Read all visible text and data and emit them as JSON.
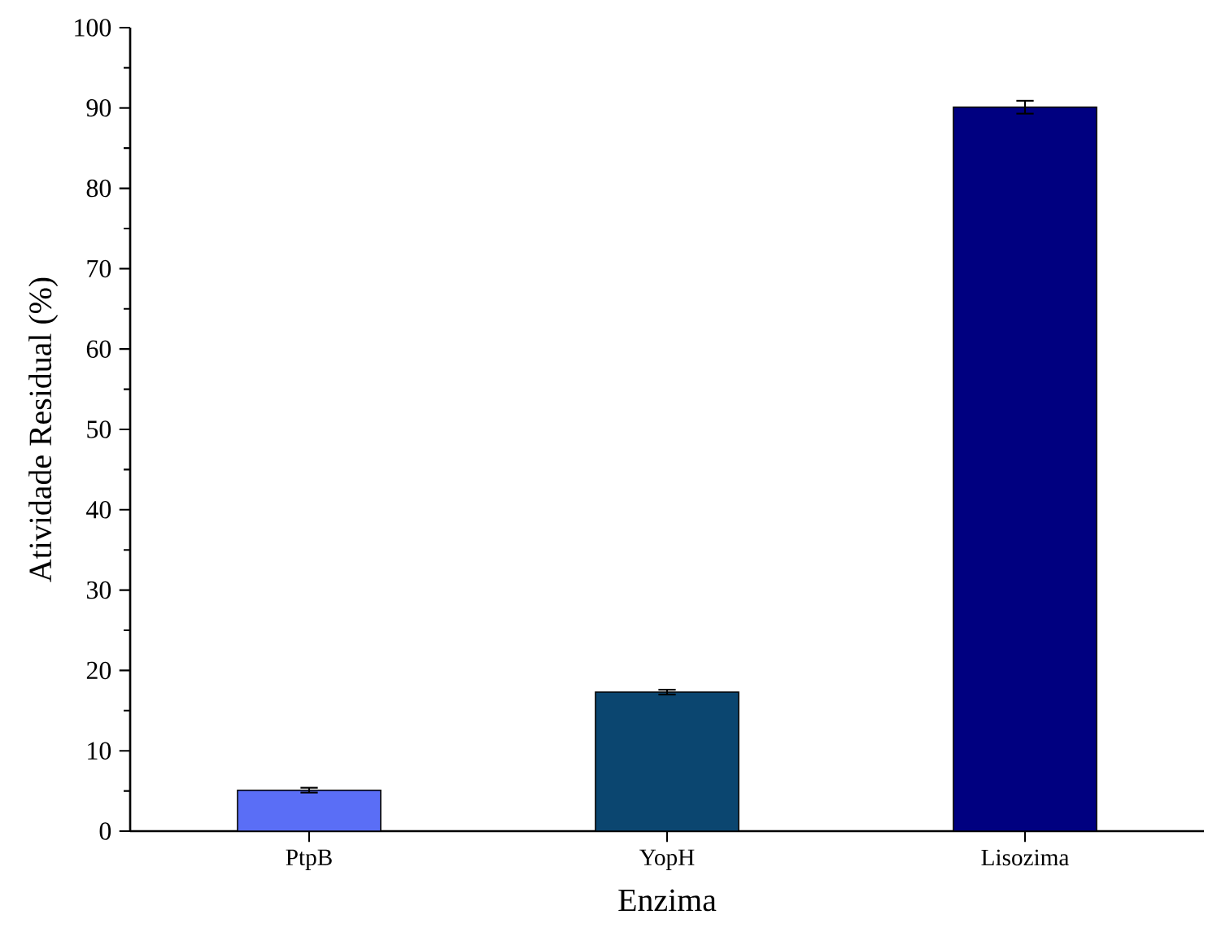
{
  "chart_data": {
    "type": "bar",
    "xlabel": "Enzima",
    "ylabel": "Atividade Residual (%)",
    "categories": [
      "PtpB",
      "YopH",
      "Lisozima"
    ],
    "values": [
      5.1,
      17.3,
      90.1
    ],
    "errors": [
      0.3,
      0.3,
      0.8
    ],
    "colors": [
      "#5a6ef6",
      "#0b4670",
      "#000080"
    ],
    "ylim": [
      0,
      100
    ],
    "yticks": [
      0,
      10,
      20,
      30,
      40,
      50,
      60,
      70,
      80,
      90,
      100
    ],
    "grid": false
  }
}
